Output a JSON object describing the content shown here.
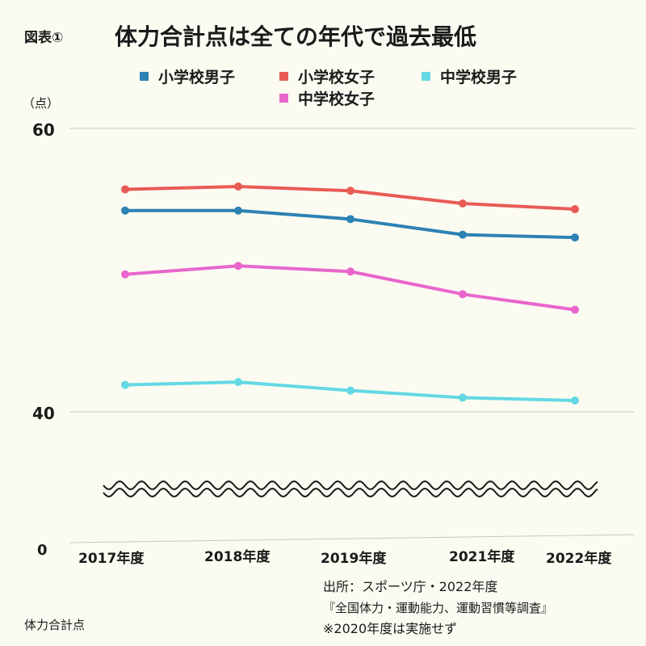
{
  "figure_label": "図表①",
  "title": "体力合計点は全ての年代で過去最低",
  "unit_label": "（点）",
  "source": {
    "line1": "出所：スポーツ庁・2022年度",
    "line2": "『全国体力・運動能力、運動習慣等調査』",
    "line3": "※2020年度は実施せず"
  },
  "footer_label": "体力合計点",
  "colors": {
    "background": "#fbfbf2",
    "grid": "#c8c8c8",
    "axis_text": "#1a1a1a"
  },
  "chart_data": {
    "type": "line",
    "categories": [
      "2017年度",
      "2018年度",
      "2019年度",
      "2021年度",
      "2022年度"
    ],
    "yticks": [
      0,
      40,
      60
    ],
    "ylim": [
      40,
      60
    ],
    "axis_break": true,
    "legend_position": "top",
    "grid": true,
    "series": [
      {
        "name": "小学校男子",
        "color": "#2d82b4",
        "values": [
          54.2,
          54.2,
          53.6,
          52.5,
          52.3
        ]
      },
      {
        "name": "小学校女子",
        "color": "#e85c55",
        "values": [
          55.7,
          55.9,
          55.6,
          54.7,
          54.3
        ]
      },
      {
        "name": "中学校男子",
        "color": "#63d9e3",
        "values": [
          41.9,
          42.1,
          41.5,
          41.0,
          40.8
        ]
      },
      {
        "name": "中学校女子",
        "color": "#e866cb",
        "values": [
          49.7,
          50.3,
          49.9,
          48.3,
          47.2
        ]
      }
    ]
  }
}
